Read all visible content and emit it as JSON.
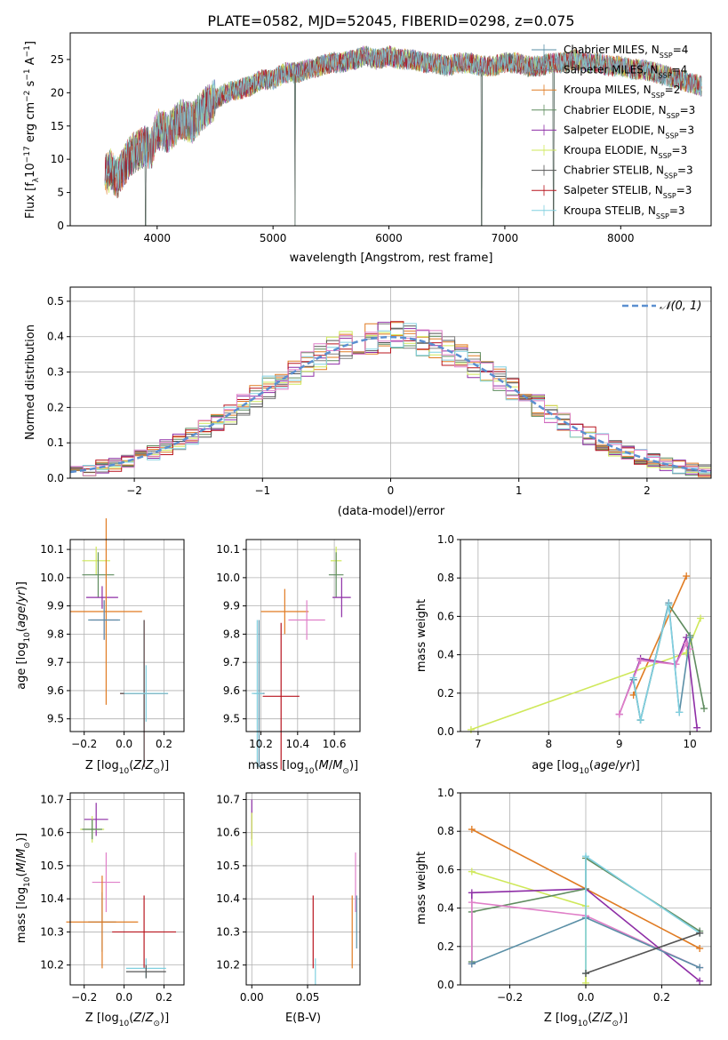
{
  "figure_title": "PLATE=0582, MJD=52045, FIBERID=0298, z=0.075",
  "palette": [
    "#5a8fa6",
    "#808080",
    "#e07b22",
    "#5f8c5f",
    "#8e2ea6",
    "#cfe85a",
    "#555555",
    "#b8141e",
    "#80d0e0"
  ],
  "palette_p2": [
    "#e07b22",
    "#808080",
    "#e07b22",
    "#5f8c5f",
    "#8e2ea6",
    "#cfe85a",
    "#555555",
    "#b8141e",
    "#80d0e0",
    "#e07fc8"
  ],
  "chart_data": [
    {
      "type": "line",
      "title": "PLATE=0582, MJD=52045, FIBERID=0298, z=0.075",
      "xlabel": "wavelength [Angstrom, rest frame]",
      "ylabel": "Flux [f_λ10^-17 erg cm^-2 s^-1 A^-1]",
      "xlim": [
        3250,
        8780
      ],
      "ylim": [
        0,
        29
      ],
      "xticks": [
        4000,
        5000,
        6000,
        7000,
        8000
      ],
      "yticks": [
        0,
        5,
        10,
        15,
        20,
        25
      ],
      "grid": false,
      "legend_position": "top-right",
      "series": [
        {
          "name": "Chabrier MILES, N_SSP=4",
          "label_base": "Chabrier MILES, N",
          "label_sub": "SSP",
          "label_tail": "=4",
          "color": "#5a8fa6"
        },
        {
          "name": "Salpeter MILES, N_SSP=4",
          "label_base": "Salpeter MILES, N",
          "label_sub": "SSP",
          "label_tail": "=4",
          "color": "#808080"
        },
        {
          "name": "Kroupa MILES, N_SSP=2",
          "label_base": "Kroupa MILES, N",
          "label_sub": "SSP",
          "label_tail": "=2",
          "color": "#e07b22"
        },
        {
          "name": "Chabrier ELODIE, N_SSP=3",
          "label_base": "Chabrier ELODIE, N",
          "label_sub": "SSP",
          "label_tail": "=3",
          "color": "#5f8c5f"
        },
        {
          "name": "Salpeter ELODIE, N_SSP=3",
          "label_base": "Salpeter ELODIE, N",
          "label_sub": "SSP",
          "label_tail": "=3",
          "color": "#8e2ea6"
        },
        {
          "name": "Kroupa ELODIE, N_SSP=3",
          "label_base": "Kroupa ELODIE, N",
          "label_sub": "SSP",
          "label_tail": "=3",
          "color": "#cfe85a"
        },
        {
          "name": "Chabrier STELIB, N_SSP=3",
          "label_base": "Chabrier STELIB, N",
          "label_sub": "SSP",
          "label_tail": "=3",
          "color": "#555555"
        },
        {
          "name": "Salpeter STELIB, N_SSP=3",
          "label_base": "Salpeter STELIB, N",
          "label_sub": "SSP",
          "label_tail": "=3",
          "color": "#b8141e"
        },
        {
          "name": "Kroupa STELIB, N_SSP=3",
          "label_base": "Kroupa STELIB, N",
          "label_sub": "SSP",
          "label_tail": "=3",
          "color": "#80d0e0"
        }
      ],
      "spectrum_envelope": {
        "wavelength": [
          3550,
          3600,
          3650,
          3700,
          3750,
          3800,
          3850,
          3900,
          3950,
          4000,
          4100,
          4200,
          4300,
          4400,
          4500,
          4600,
          4700,
          4800,
          4900,
          5000,
          5100,
          5200,
          5300,
          5400,
          5500,
          5600,
          5700,
          5800,
          5900,
          6000,
          6100,
          6200,
          6300,
          6400,
          6500,
          6600,
          6700,
          6800,
          6900,
          7000,
          7100,
          7200,
          7300,
          7400,
          7500,
          7600,
          7700,
          7800,
          7900,
          8000,
          8100,
          8200,
          8300,
          8400,
          8500,
          8600,
          8700
        ],
        "flux": [
          7.5,
          8.5,
          7.0,
          8.5,
          10.0,
          11.0,
          11.5,
          12.0,
          11.5,
          14.5,
          14.0,
          16.0,
          15.5,
          17.5,
          19.0,
          20.0,
          20.5,
          21.0,
          22.0,
          22.0,
          23.0,
          23.0,
          23.5,
          24.0,
          24.5,
          24.5,
          25.0,
          25.5,
          25.0,
          25.5,
          25.0,
          25.0,
          24.5,
          24.5,
          24.0,
          24.5,
          24.5,
          24.0,
          24.0,
          24.5,
          24.5,
          24.0,
          24.0,
          24.5,
          24.5,
          25.0,
          24.5,
          24.5,
          24.0,
          24.0,
          23.5,
          23.5,
          23.0,
          22.5,
          22.0,
          21.5,
          21.0
        ],
        "noise_amplitude": 2.0,
        "sharp_features": [
          {
            "wavelength": 3900,
            "flux_min": 0.0
          },
          {
            "wavelength": 5190,
            "flux_min": 0.0
          },
          {
            "wavelength": 6800,
            "flux_min": 0.0
          },
          {
            "wavelength": 7420,
            "flux_min": 0.0
          }
        ]
      }
    },
    {
      "type": "histogram",
      "xlabel": "(data-model)/error",
      "ylabel": "Normed distribution",
      "xlim": [
        -2.5,
        2.5
      ],
      "ylim": [
        0,
        0.54
      ],
      "xticks": [
        -2,
        -1,
        0,
        1,
        2
      ],
      "yticks": [
        0.0,
        0.1,
        0.2,
        0.3,
        0.4,
        0.5
      ],
      "grid": true,
      "legend_position": "top-right",
      "reference_curve": {
        "name": "N(0,1)",
        "label": "𝒩(0, 1)",
        "type": "gaussian",
        "mu": 0,
        "sigma": 1,
        "color": "#5b8fd0"
      },
      "bin_width": 0.1,
      "bin_start": -2.5,
      "n_histograms": 10,
      "scatter_amplitude": 0.035
    },
    {
      "type": "errorbar",
      "xlabel": "Z [log10(Z/Z⊙)]",
      "ylabel": "age [log10(age/yr)]",
      "xlim": [
        -0.27,
        0.3
      ],
      "ylim": [
        9.455,
        10.135
      ],
      "xticks": [
        -0.2,
        0.0,
        0.2
      ],
      "xtick_labels": [
        "−0.2",
        "0.0",
        "0.2"
      ],
      "yticks": [
        9.5,
        9.6,
        9.7,
        9.8,
        9.9,
        10.0,
        10.1
      ],
      "grid": true,
      "points": [
        {
          "x": -0.14,
          "y": 10.06,
          "xerr": 0.07,
          "yerr": 0.05,
          "color": "#cfe85a"
        },
        {
          "x": -0.13,
          "y": 10.01,
          "xerr": 0.08,
          "yerr": 0.08,
          "color": "#5f8c5f"
        },
        {
          "x": -0.11,
          "y": 9.93,
          "xerr": 0.08,
          "yerr": 0.04,
          "color": "#8e2ea6"
        },
        {
          "x": -0.09,
          "y": 9.88,
          "xerr": 0.18,
          "yerr": 0.33,
          "color": "#e07b22"
        },
        {
          "x": -0.1,
          "y": 9.85,
          "xerr": 0.07,
          "yerr": 0.07,
          "color": "#e07fc8"
        },
        {
          "x": -0.1,
          "y": 9.85,
          "xerr": 0.08,
          "yerr": 0.07,
          "color": "#5a8fa6"
        },
        {
          "x": 0.1,
          "y": 9.59,
          "xerr": 0.12,
          "yerr": 0.26,
          "color": "#b8141e"
        },
        {
          "x": 0.1,
          "y": 9.59,
          "xerr": 0.12,
          "yerr": 0.26,
          "color": "#555555"
        },
        {
          "x": 0.11,
          "y": 9.59,
          "xerr": 0.11,
          "yerr": 0.1,
          "color": "#80d0e0"
        }
      ]
    },
    {
      "type": "errorbar",
      "xlabel": "mass [log10(M/M⊙)]",
      "ylabel": "",
      "xlim": [
        10.12,
        10.74
      ],
      "ylim": [
        9.455,
        10.135
      ],
      "xticks": [
        10.2,
        10.4,
        10.6
      ],
      "xtick_labels": [
        "10.2",
        "10.4",
        "10.6"
      ],
      "yticks": [
        9.5,
        9.6,
        9.7,
        9.8,
        9.9,
        10.0,
        10.1
      ],
      "grid": true,
      "points": [
        {
          "x": 10.61,
          "y": 10.06,
          "xerr": 0.03,
          "yerr": 0.05,
          "color": "#cfe85a"
        },
        {
          "x": 10.61,
          "y": 10.01,
          "xerr": 0.04,
          "yerr": 0.08,
          "color": "#5f8c5f"
        },
        {
          "x": 10.64,
          "y": 9.93,
          "xerr": 0.05,
          "yerr": 0.07,
          "color": "#8e2ea6"
        },
        {
          "x": 10.33,
          "y": 9.88,
          "xerr": 0.13,
          "yerr": 0.08,
          "color": "#e07b22"
        },
        {
          "x": 10.45,
          "y": 9.85,
          "xerr": 0.1,
          "yerr": 0.07,
          "color": "#e07fc8"
        },
        {
          "x": 10.19,
          "y": 9.59,
          "xerr": 0.03,
          "yerr": 0.26,
          "color": "#5a8fa6"
        },
        {
          "x": 10.31,
          "y": 9.58,
          "xerr": 0.1,
          "yerr": 0.26,
          "color": "#b8141e"
        },
        {
          "x": 10.18,
          "y": 9.59,
          "xerr": 0.03,
          "yerr": 0.26,
          "color": "#80d0e0"
        }
      ]
    },
    {
      "type": "line",
      "xlabel": "age [log10(age/yr)]",
      "ylabel": "mass weight",
      "xlim": [
        6.75,
        10.3
      ],
      "ylim": [
        0,
        1.0
      ],
      "xticks": [
        7,
        8,
        9,
        10
      ],
      "yticks": [
        0.0,
        0.2,
        0.4,
        0.6,
        0.8,
        1.0
      ],
      "grid": true,
      "series": [
        {
          "color": "#e07b22",
          "x": [
            9.2,
            9.95
          ],
          "y": [
            0.19,
            0.81
          ]
        },
        {
          "color": "#cfe85a",
          "x": [
            6.9,
            9.95,
            10.15
          ],
          "y": [
            0.01,
            0.41,
            0.59
          ]
        },
        {
          "color": "#5f8c5f",
          "x": [
            9.2,
            9.3,
            9.7,
            10.0,
            10.2
          ],
          "y": [
            0.27,
            0.06,
            0.66,
            0.5,
            0.12
          ]
        },
        {
          "color": "#8e2ea6",
          "x": [
            9.0,
            9.3,
            9.8,
            9.95,
            10.1
          ],
          "y": [
            0.09,
            0.38,
            0.35,
            0.49,
            0.02
          ]
        },
        {
          "color": "#e07fc8",
          "x": [
            9.0,
            9.3,
            9.8,
            9.95,
            10.0
          ],
          "y": [
            0.09,
            0.37,
            0.35,
            0.46,
            0.43
          ]
        },
        {
          "color": "#5a8fa6",
          "x": [
            9.2,
            9.3,
            9.7,
            9.85,
            10.0
          ],
          "y": [
            0.27,
            0.06,
            0.67,
            0.1,
            0.49
          ]
        },
        {
          "color": "#80d0e0",
          "x": [
            9.2,
            9.3,
            9.7,
            9.85
          ],
          "y": [
            0.28,
            0.06,
            0.66,
            0.1
          ]
        }
      ]
    },
    {
      "type": "errorbar",
      "xlabel": "Z [log10(Z/Z⊙)]",
      "ylabel": "mass [log10(M/M⊙)]",
      "xlim": [
        -0.27,
        0.3
      ],
      "ylim": [
        10.14,
        10.72
      ],
      "xticks": [
        -0.2,
        0.0,
        0.2
      ],
      "xtick_labels": [
        "−0.2",
        "0.0",
        "0.2"
      ],
      "yticks": [
        10.2,
        10.3,
        10.4,
        10.5,
        10.6,
        10.7
      ],
      "grid": true,
      "points": [
        {
          "x": -0.14,
          "y": 10.64,
          "xerr": 0.06,
          "yerr": 0.05,
          "color": "#8e2ea6"
        },
        {
          "x": -0.16,
          "y": 10.61,
          "xerr": 0.06,
          "yerr": 0.04,
          "color": "#cfe85a"
        },
        {
          "x": -0.16,
          "y": 10.61,
          "xerr": 0.05,
          "yerr": 0.03,
          "color": "#5f8c5f"
        },
        {
          "x": -0.09,
          "y": 10.45,
          "xerr": 0.07,
          "yerr": 0.09,
          "color": "#e07fc8"
        },
        {
          "x": -0.11,
          "y": 10.33,
          "xerr": 0.07,
          "yerr": 0.09,
          "color": "#5a8fa6"
        },
        {
          "x": -0.11,
          "y": 10.33,
          "xerr": 0.18,
          "yerr": 0.14,
          "color": "#e07b22"
        },
        {
          "x": 0.1,
          "y": 10.3,
          "xerr": 0.16,
          "yerr": 0.11,
          "color": "#b8141e"
        },
        {
          "x": 0.11,
          "y": 10.19,
          "xerr": 0.1,
          "yerr": 0.03,
          "color": "#80d0e0"
        },
        {
          "x": 0.11,
          "y": 10.18,
          "xerr": 0.1,
          "yerr": 0.02,
          "color": "#555555"
        }
      ]
    },
    {
      "type": "errorbar",
      "xlabel": "E(B-V)",
      "ylabel": "",
      "xlim": [
        -0.005,
        0.097
      ],
      "ylim": [
        10.14,
        10.72
      ],
      "xticks": [
        0.0,
        0.05
      ],
      "xtick_labels": [
        "0.00",
        "0.05"
      ],
      "yticks": [
        10.2,
        10.3,
        10.4,
        10.5,
        10.6,
        10.7
      ],
      "grid": true,
      "points": [
        {
          "x": 0.0,
          "y": 10.64,
          "xerr": 0.0,
          "yerr": 0.06,
          "color": "#8e2ea6"
        },
        {
          "x": 0.0,
          "y": 10.61,
          "xerr": 0.0,
          "yerr": 0.05,
          "color": "#cfe85a"
        },
        {
          "x": 0.055,
          "y": 10.3,
          "xerr": 0.0,
          "yerr": 0.11,
          "color": "#b8141e"
        },
        {
          "x": 0.057,
          "y": 10.18,
          "xerr": 0.0,
          "yerr": 0.04,
          "color": "#80d0e0"
        },
        {
          "x": 0.093,
          "y": 10.45,
          "xerr": 0.0,
          "yerr": 0.09,
          "color": "#e07fc8"
        },
        {
          "x": 0.094,
          "y": 10.33,
          "xerr": 0.0,
          "yerr": 0.08,
          "color": "#5a8fa6"
        },
        {
          "x": 0.09,
          "y": 10.3,
          "xerr": 0.0,
          "yerr": 0.11,
          "color": "#e07b22"
        }
      ]
    },
    {
      "type": "line",
      "xlabel": "Z [log10(Z/Z⊙)]",
      "ylabel": "mass weight",
      "xlim": [
        -0.33,
        0.33
      ],
      "ylim": [
        0,
        1.0
      ],
      "xticks": [
        -0.2,
        0.0,
        0.2
      ],
      "xtick_labels": [
        "−0.2",
        "0.0",
        "0.2"
      ],
      "yticks": [
        0.0,
        0.2,
        0.4,
        0.6,
        0.8,
        1.0
      ],
      "grid": true,
      "series": [
        {
          "color": "#e07b22",
          "x": [
            -0.3,
            0.3
          ],
          "y": [
            0.81,
            0.19
          ]
        },
        {
          "color": "#cfe85a",
          "x": [
            -0.3,
            0.0,
            0.0
          ],
          "y": [
            0.59,
            0.41,
            0.01
          ]
        },
        {
          "color": "#8e2ea6",
          "x": [
            -0.3,
            -0.3,
            0.0,
            0.3
          ],
          "y": [
            0.11,
            0.48,
            0.5,
            0.02
          ]
        },
        {
          "color": "#5f8c5f",
          "x": [
            -0.3,
            -0.3,
            0.0,
            0.0,
            0.3
          ],
          "y": [
            0.12,
            0.38,
            0.5,
            0.66,
            0.28
          ]
        },
        {
          "color": "#e07fc8",
          "x": [
            -0.3,
            -0.3,
            0.0,
            0.3
          ],
          "y": [
            0.11,
            0.43,
            0.36,
            0.09
          ]
        },
        {
          "color": "#5a8fa6",
          "x": [
            -0.3,
            0.0,
            0.3
          ],
          "y": [
            0.11,
            0.35,
            0.09
          ]
        },
        {
          "color": "#80d0e0",
          "x": [
            0.0,
            0.0,
            0.3
          ],
          "y": [
            0.06,
            0.67,
            0.27
          ]
        },
        {
          "color": "#555555",
          "x": [
            0.0,
            0.3
          ],
          "y": [
            0.06,
            0.27
          ]
        }
      ]
    }
  ]
}
